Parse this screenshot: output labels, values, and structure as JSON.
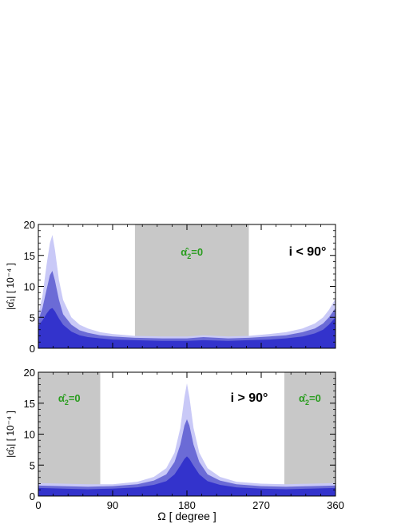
{
  "chart_data": [
    {
      "type": "area",
      "panel": "top",
      "annotation": "i < 90°",
      "ylabel": "|α̂₁| [ 10⁻⁴ ]",
      "xlim": [
        0,
        360
      ],
      "ylim": [
        0,
        20
      ],
      "yticks": [
        0,
        5,
        10,
        15,
        20
      ],
      "excluded_region": {
        "x": [
          117,
          255
        ],
        "label_main": "α̂",
        "label_sub": "2",
        "label_eq": "=0",
        "color": "#c8c8c8",
        "label_color": "#2a9d1f"
      },
      "x": [
        0,
        5,
        10,
        14,
        17,
        20,
        25,
        30,
        40,
        50,
        60,
        75,
        90,
        117,
        150,
        180,
        200,
        230,
        255,
        280,
        300,
        320,
        335,
        345,
        352,
        360
      ],
      "series": [
        {
          "values": [
            5.5,
            8.5,
            13.5,
            17.0,
            18.3,
            16.0,
            11.0,
            7.8,
            5.0,
            3.8,
            3.2,
            2.6,
            2.3,
            2.0,
            1.9,
            1.9,
            2.1,
            1.9,
            2.0,
            2.3,
            2.6,
            3.2,
            4.0,
            5.0,
            6.2,
            8.0
          ],
          "color": "#c9c9f7"
        },
        {
          "values": [
            4.5,
            6.5,
            9.5,
            11.8,
            12.5,
            11.0,
            7.8,
            5.5,
            3.8,
            2.9,
            2.5,
            2.1,
            1.9,
            1.7,
            1.6,
            1.6,
            1.8,
            1.6,
            1.7,
            1.9,
            2.1,
            2.6,
            3.2,
            4.0,
            5.0,
            6.5
          ],
          "color": "#6b6bd6"
        },
        {
          "values": [
            3.6,
            4.5,
            5.6,
            6.3,
            6.5,
            6.0,
            4.8,
            3.8,
            2.7,
            2.1,
            1.8,
            1.6,
            1.4,
            1.3,
            1.2,
            1.2,
            1.3,
            1.2,
            1.3,
            1.4,
            1.6,
            1.9,
            2.4,
            3.0,
            3.8,
            5.0
          ],
          "color": "#3333cc"
        }
      ]
    },
    {
      "type": "area",
      "panel": "bottom",
      "annotation": "i > 90°",
      "ylabel": "|α̂₁| [ 10⁻⁴ ]",
      "xlabel": "Ω [ degree ]",
      "xlim": [
        0,
        360
      ],
      "ylim": [
        0,
        20
      ],
      "yticks": [
        0,
        5,
        10,
        15,
        20
      ],
      "xticks": [
        0,
        90,
        180,
        270,
        360
      ],
      "excluded_regions": [
        {
          "x": [
            0,
            75
          ],
          "label_main": "α̂",
          "label_sub": "2",
          "label_eq": "=0",
          "color": "#c8c8c8",
          "label_color": "#2a9d1f"
        },
        {
          "x": [
            298,
            360
          ],
          "label_main": "α̂",
          "label_sub": "2",
          "label_eq": "=0",
          "color": "#c8c8c8",
          "label_color": "#2a9d1f"
        }
      ],
      "x": [
        0,
        30,
        60,
        90,
        120,
        140,
        155,
        165,
        172,
        177,
        180,
        183,
        188,
        195,
        205,
        220,
        240,
        270,
        300,
        330,
        360
      ],
      "series": [
        {
          "values": [
            2.1,
            2.0,
            1.9,
            1.9,
            2.3,
            3.1,
            4.5,
            7.0,
            11.0,
            16.0,
            18.2,
            16.0,
            11.0,
            7.0,
            4.5,
            3.1,
            2.3,
            2.0,
            1.9,
            2.0,
            2.1
          ],
          "color": "#c9c9f7"
        },
        {
          "values": [
            1.7,
            1.6,
            1.5,
            1.6,
            1.9,
            2.5,
            3.5,
            5.5,
            8.3,
            11.4,
            12.4,
            11.4,
            8.3,
            5.5,
            3.5,
            2.5,
            1.9,
            1.6,
            1.5,
            1.6,
            1.7
          ],
          "color": "#6b6bd6"
        },
        {
          "values": [
            1.3,
            1.2,
            1.1,
            1.2,
            1.4,
            1.8,
            2.4,
            3.5,
            4.9,
            6.0,
            6.4,
            6.0,
            4.9,
            3.5,
            2.4,
            1.8,
            1.4,
            1.2,
            1.1,
            1.2,
            1.3
          ],
          "color": "#3333cc"
        }
      ]
    }
  ]
}
